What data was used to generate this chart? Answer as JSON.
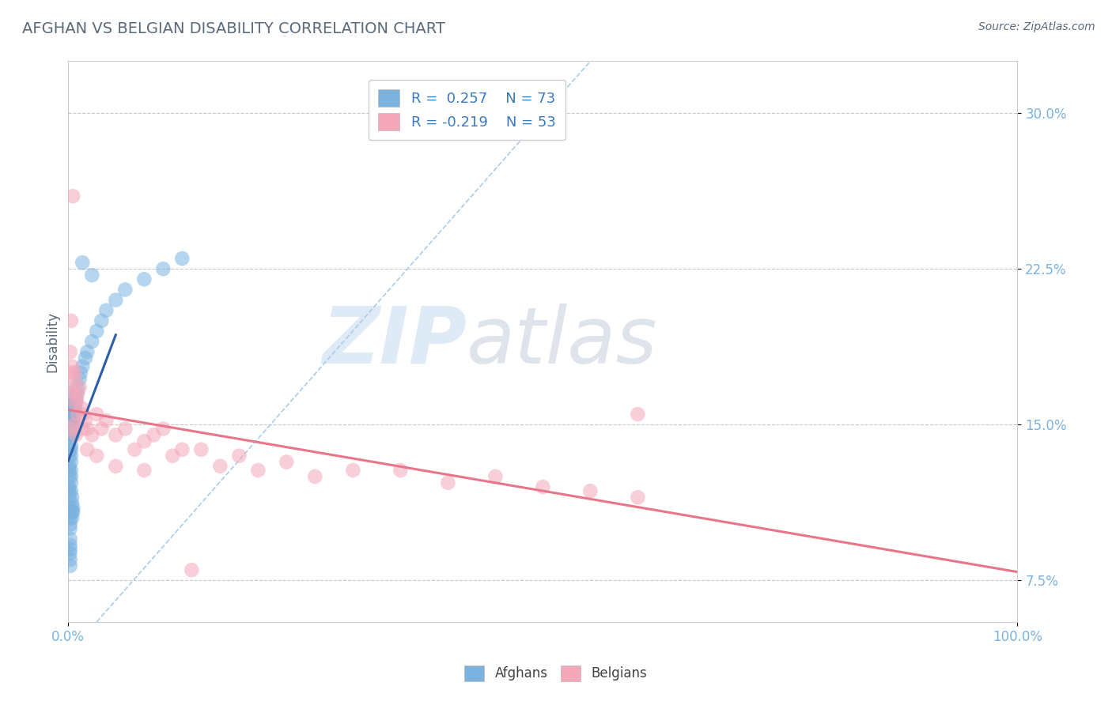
{
  "title": "AFGHAN VS BELGIAN DISABILITY CORRELATION CHART",
  "source": "Source: ZipAtlas.com",
  "ylabel": "Disability",
  "xlabel": "",
  "xlim": [
    0.0,
    1.0
  ],
  "ylim": [
    0.055,
    0.325
  ],
  "yticks": [
    0.075,
    0.15,
    0.225,
    0.3
  ],
  "ytick_labels": [
    "7.5%",
    "15.0%",
    "22.5%",
    "30.0%"
  ],
  "xtick_left_label": "0.0%",
  "xtick_right_label": "100.0%",
  "afghan_color": "#7ab3e0",
  "belgian_color": "#f4a7b9",
  "afghan_line_color": "#2c5fa8",
  "belgian_line_color": "#e8758a",
  "diag_line_color": "#aacce8",
  "afghan_R": 0.257,
  "afghan_N": 73,
  "belgian_R": -0.219,
  "belgian_N": 53,
  "watermark_zip": "ZIP",
  "watermark_atlas": "atlas",
  "background_color": "#ffffff",
  "grid_color": "#c8c8c8",
  "title_color": "#5a6a7a",
  "tick_color": "#7ab3e0",
  "legend_text_color": "#3a7abf",
  "afghan_points_x": [
    0.001,
    0.001,
    0.001,
    0.001,
    0.001,
    0.001,
    0.001,
    0.001,
    0.001,
    0.001,
    0.002,
    0.002,
    0.002,
    0.002,
    0.002,
    0.002,
    0.002,
    0.002,
    0.002,
    0.002,
    0.002,
    0.002,
    0.002,
    0.002,
    0.002,
    0.002,
    0.003,
    0.003,
    0.003,
    0.003,
    0.003,
    0.003,
    0.003,
    0.003,
    0.003,
    0.003,
    0.003,
    0.003,
    0.004,
    0.004,
    0.004,
    0.004,
    0.004,
    0.004,
    0.004,
    0.005,
    0.005,
    0.005,
    0.005,
    0.005,
    0.006,
    0.006,
    0.007,
    0.007,
    0.008,
    0.009,
    0.01,
    0.012,
    0.013,
    0.015,
    0.018,
    0.02,
    0.025,
    0.03,
    0.035,
    0.04,
    0.05,
    0.06,
    0.08,
    0.1,
    0.12,
    0.015,
    0.025
  ],
  "afghan_points_y": [
    0.145,
    0.148,
    0.138,
    0.135,
    0.13,
    0.128,
    0.125,
    0.12,
    0.118,
    0.115,
    0.145,
    0.15,
    0.155,
    0.16,
    0.165,
    0.11,
    0.108,
    0.105,
    0.102,
    0.1,
    0.095,
    0.092,
    0.09,
    0.088,
    0.085,
    0.082,
    0.148,
    0.152,
    0.155,
    0.158,
    0.14,
    0.138,
    0.135,
    0.132,
    0.128,
    0.125,
    0.122,
    0.118,
    0.145,
    0.148,
    0.152,
    0.115,
    0.112,
    0.108,
    0.105,
    0.155,
    0.15,
    0.145,
    0.11,
    0.108,
    0.158,
    0.155,
    0.16,
    0.158,
    0.162,
    0.165,
    0.168,
    0.172,
    0.175,
    0.178,
    0.182,
    0.185,
    0.19,
    0.195,
    0.2,
    0.205,
    0.21,
    0.215,
    0.22,
    0.225,
    0.23,
    0.228,
    0.222
  ],
  "belgian_points_x": [
    0.002,
    0.003,
    0.003,
    0.004,
    0.004,
    0.005,
    0.005,
    0.006,
    0.007,
    0.008,
    0.009,
    0.01,
    0.012,
    0.014,
    0.016,
    0.018,
    0.02,
    0.025,
    0.03,
    0.035,
    0.04,
    0.05,
    0.06,
    0.07,
    0.08,
    0.09,
    0.1,
    0.11,
    0.12,
    0.14,
    0.16,
    0.18,
    0.2,
    0.23,
    0.26,
    0.3,
    0.35,
    0.4,
    0.45,
    0.5,
    0.55,
    0.6,
    0.004,
    0.006,
    0.008,
    0.01,
    0.015,
    0.02,
    0.03,
    0.05,
    0.08,
    0.13,
    0.6
  ],
  "belgian_points_y": [
    0.185,
    0.175,
    0.2,
    0.165,
    0.178,
    0.26,
    0.168,
    0.172,
    0.175,
    0.16,
    0.162,
    0.165,
    0.168,
    0.158,
    0.155,
    0.152,
    0.148,
    0.145,
    0.155,
    0.148,
    0.152,
    0.145,
    0.148,
    0.138,
    0.142,
    0.145,
    0.148,
    0.135,
    0.138,
    0.138,
    0.13,
    0.135,
    0.128,
    0.132,
    0.125,
    0.128,
    0.128,
    0.122,
    0.125,
    0.12,
    0.118,
    0.115,
    0.148,
    0.15,
    0.145,
    0.155,
    0.148,
    0.138,
    0.135,
    0.13,
    0.128,
    0.08,
    0.155
  ]
}
